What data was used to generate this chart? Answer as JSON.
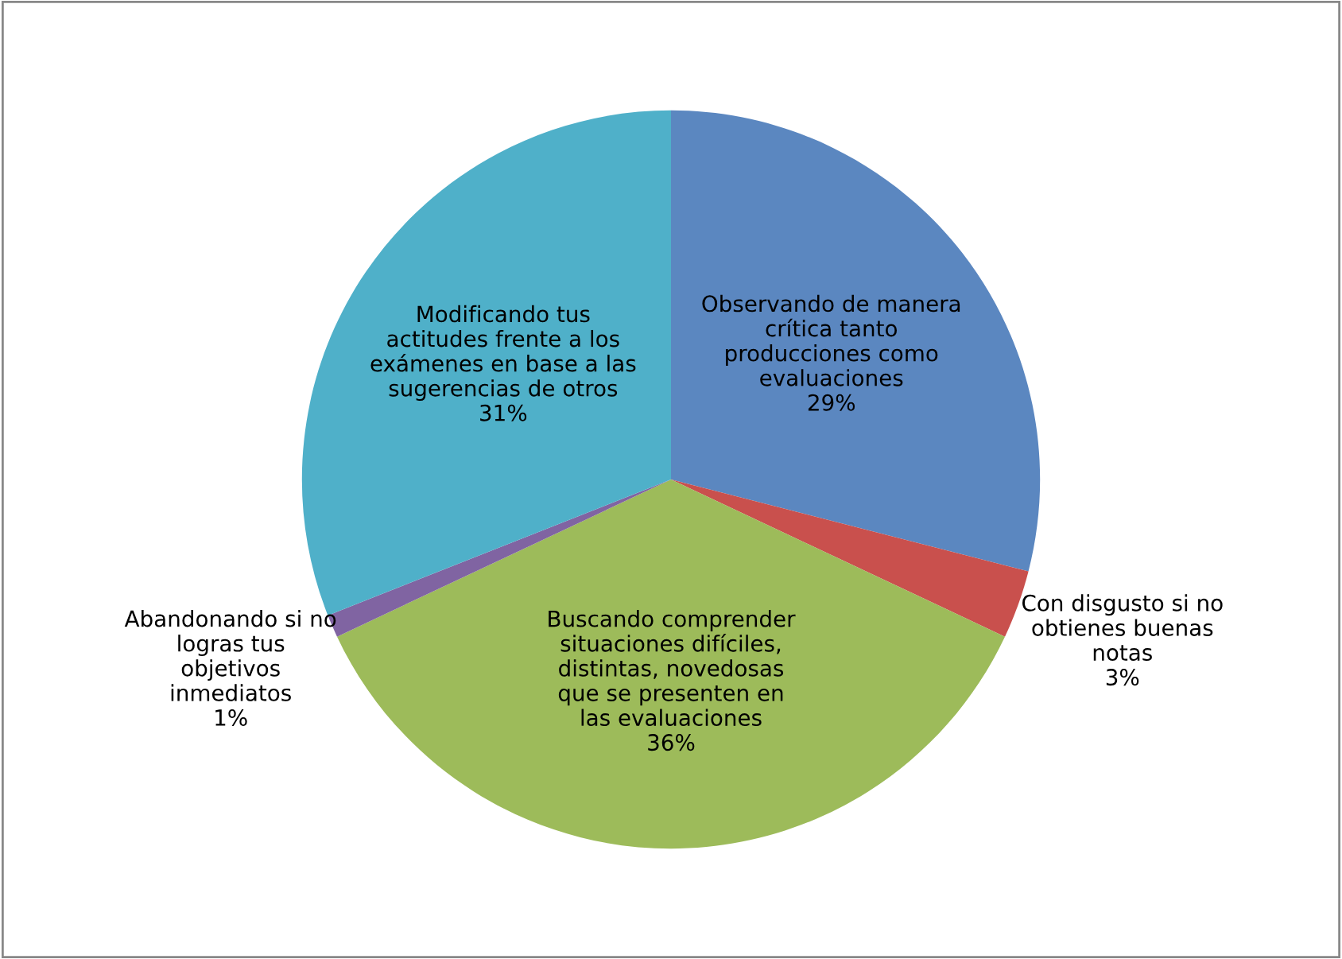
{
  "chart_data": {
    "type": "pie",
    "categories": [
      "Observando de manera crítica tanto producciones como evaluaciones",
      "Con disgusto si no obtienes buenas notas",
      "Buscando comprender situaciones difíciles, distintas, novedosas que se presenten en las evaluaciones",
      "Abandonando si no logras tus objetivos inmediatos",
      "Modificando tus actitudes frente a los exámenes en base a las sugerencias de otros"
    ],
    "values": [
      29,
      3,
      36,
      1,
      31
    ],
    "colors": [
      "#5b87c0",
      "#c9504d",
      "#9dbb5a",
      "#8064a2",
      "#4fb0c9"
    ],
    "value_labels": [
      "29%",
      "3%",
      "36%",
      "1%",
      "31%"
    ],
    "legend": false
  }
}
